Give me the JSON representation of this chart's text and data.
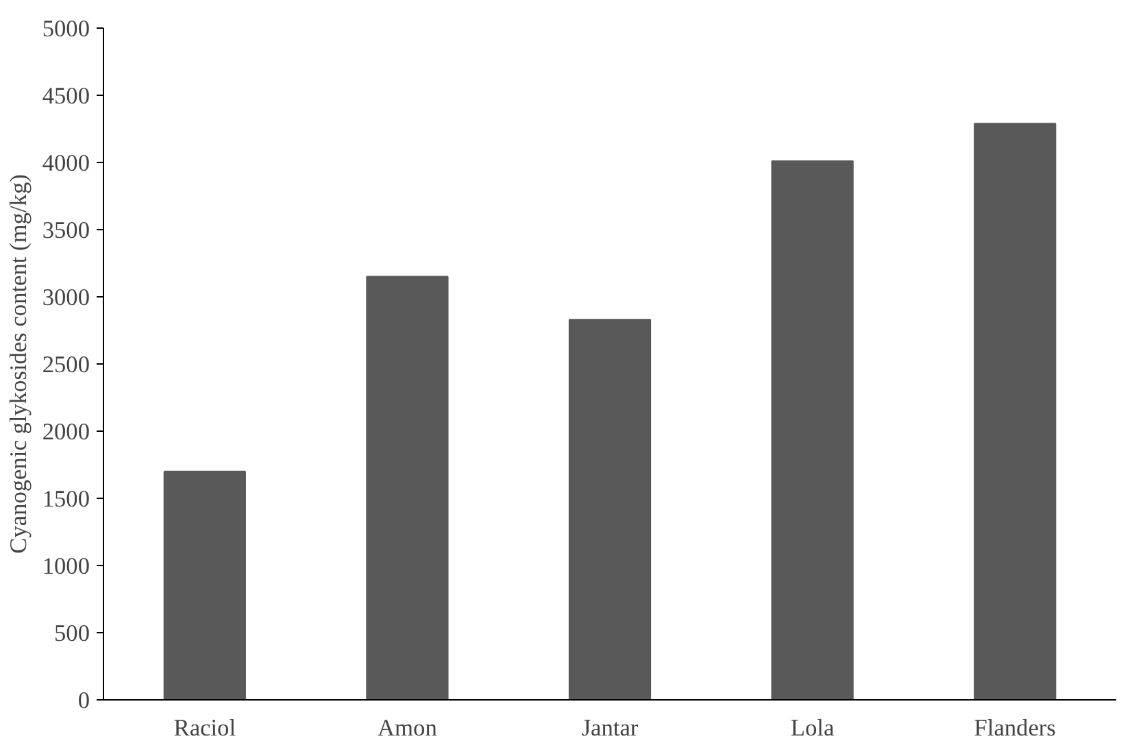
{
  "chart_data": {
    "type": "bar",
    "ylabel": "Cyanogenic glykosides content (mg/kg)",
    "categories": [
      "Raciol",
      "Amon",
      "Jantar",
      "Lola",
      "Flanders"
    ],
    "values": [
      1700,
      3150,
      2830,
      4010,
      4290
    ],
    "color": "#595959",
    "ylim": [
      0,
      5000
    ],
    "yticks": [
      0,
      500,
      1000,
      1500,
      2000,
      2500,
      3000,
      3500,
      4000,
      4500,
      5000
    ],
    "grid": false
  }
}
